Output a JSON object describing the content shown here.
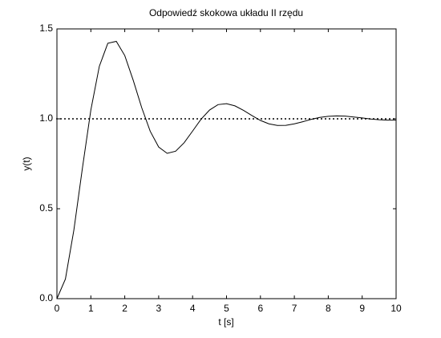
{
  "chart_data": {
    "type": "line",
    "title": "Odpowiedź skokowa układu II rzędu",
    "xlabel": "t [s]",
    "ylabel": "y(t)",
    "x": [
      0,
      0.25,
      0.5,
      0.75,
      1,
      1.25,
      1.5,
      1.75,
      2,
      2.25,
      2.5,
      2.75,
      3,
      3.25,
      3.5,
      3.75,
      4,
      4.25,
      4.5,
      4.75,
      5,
      5.25,
      5.5,
      5.75,
      6,
      6.25,
      6.5,
      6.75,
      7,
      7.25,
      7.5,
      7.75,
      8,
      8.25,
      8.5,
      8.75,
      9,
      9.25,
      9.5,
      9.75,
      10
    ],
    "series": [
      {
        "color": "#000000",
        "values": [
          0,
          0.109,
          0.382,
          0.724,
          1.049,
          1.292,
          1.42,
          1.431,
          1.352,
          1.214,
          1.062,
          0.931,
          0.843,
          0.808,
          0.82,
          0.867,
          0.932,
          0.998,
          1.049,
          1.079,
          1.084,
          1.072,
          1.047,
          1.018,
          0.991,
          0.972,
          0.963,
          0.964,
          0.972,
          0.984,
          0.997,
          1.008,
          1.014,
          1.016,
          1.015,
          1.01,
          1.005,
          0.999,
          0.995,
          0.993,
          0.993
        ]
      }
    ],
    "reference_line": {
      "value": 1,
      "color": "#000000",
      "style": "dotted"
    },
    "xlim": [
      0,
      10
    ],
    "ylim": [
      0,
      1.5
    ],
    "xticks": [
      0,
      1,
      2,
      3,
      4,
      5,
      6,
      7,
      8,
      9,
      10
    ],
    "yticks": [
      {
        "value": 0,
        "label": "0.0"
      },
      0.5,
      {
        "value": 1,
        "label": "1.0"
      },
      1.5
    ],
    "grid": false
  }
}
